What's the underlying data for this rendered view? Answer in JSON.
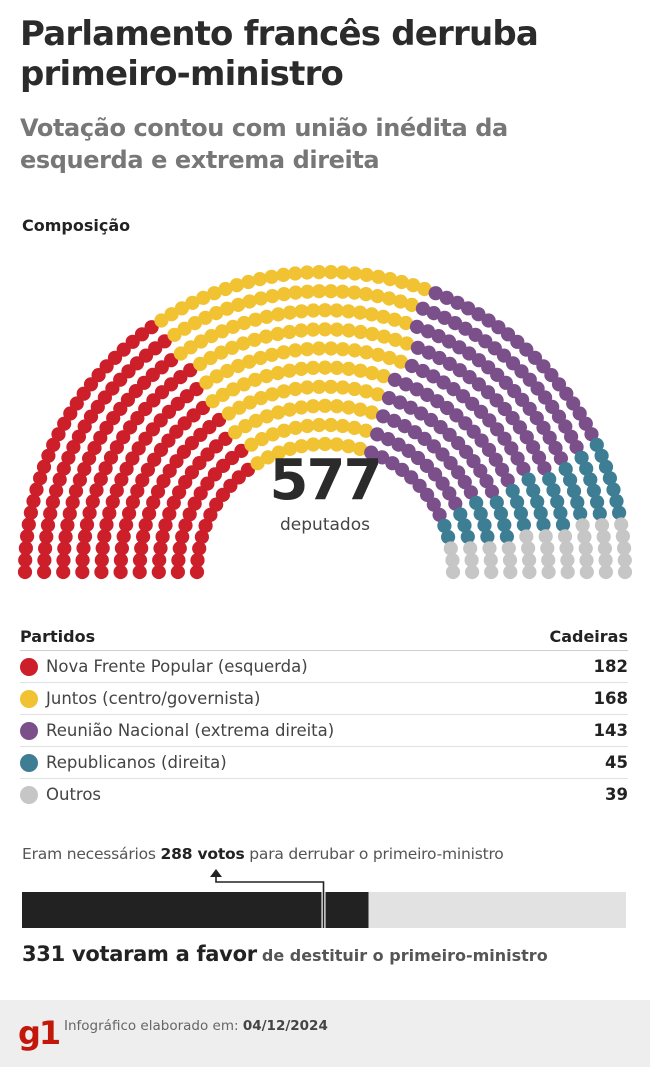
{
  "header": {
    "title": "Parlamento francês derruba primeiro-ministro",
    "subtitle": "Votação contou com união inédita da esquerda e extrema direita"
  },
  "composition_label": "Composição",
  "total": {
    "value": "577",
    "label": "deputados"
  },
  "legend": {
    "parties_header": "Partidos",
    "seats_header": "Cadeiras"
  },
  "vote": {
    "needed_prefix": "Eram necessários",
    "needed_value": "288 votos",
    "needed_suffix": "para derrubar o primeiro-ministro",
    "result_main": "331 votaram a favor",
    "result_rest": "de destituir o primeiro-ministro",
    "threshold": 288,
    "in_favor": 331,
    "total": 577,
    "colors": {
      "fill": "#222222",
      "track": "#e2e2e2"
    }
  },
  "footer": {
    "logo": "g1",
    "credit_prefix": "Infográfico elaborado em:",
    "credit_date": "04/12/2024"
  },
  "chart_data": {
    "type": "hemicycle",
    "total_seats": 577,
    "series": [
      {
        "name": "Nova Frente Popular (esquerda)",
        "value": 182,
        "color": "#cc1f2a"
      },
      {
        "name": "Juntos (centro/governista)",
        "value": 168,
        "color": "#f1c232"
      },
      {
        "name": "Reunião Nacional (extrema direita)",
        "value": 143,
        "color": "#7b4f8a"
      },
      {
        "name": "Republicanos (direita)",
        "value": 45,
        "color": "#3e7e94"
      },
      {
        "name": "Outros",
        "value": 39,
        "color": "#c6c6c6"
      }
    ]
  }
}
